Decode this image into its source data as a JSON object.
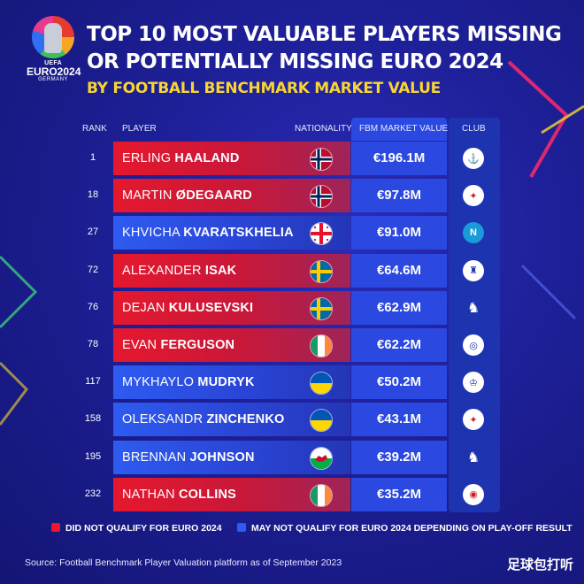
{
  "logo": {
    "line1": "UEFA",
    "line2": "EURO2024",
    "line3": "GERMANY"
  },
  "title": "Top 10 most valuable players missing or potentially missing Euro 2024",
  "subtitle": "BY FOOTBALL BENCHMARK MARKET VALUE",
  "headers": {
    "rank": "RANK",
    "player": "PLAYER",
    "nationality": "NATIONALITY",
    "value": "FBM MARKET VALUE",
    "club": "CLUB"
  },
  "players": [
    {
      "rank": "1",
      "first": "ERLING",
      "last": "HAALAND",
      "value": "€196.1M",
      "status": "red",
      "flag": "norway-flag-icon",
      "club": "manchester-city-crest-icon"
    },
    {
      "rank": "18",
      "first": "MARTIN",
      "last": "ØDEGAARD",
      "value": "€97.8M",
      "status": "red",
      "flag": "norway-flag-icon",
      "club": "arsenal-crest-icon"
    },
    {
      "rank": "27",
      "first": "KHVICHA",
      "last": "KVARATSKHELIA",
      "value": "€91.0M",
      "status": "blue",
      "flag": "georgia-flag-icon",
      "club": "napoli-crest-icon"
    },
    {
      "rank": "72",
      "first": "ALEXANDER",
      "last": "ISAK",
      "value": "€64.6M",
      "status": "red",
      "flag": "sweden-flag-icon",
      "club": "newcastle-crest-icon"
    },
    {
      "rank": "76",
      "first": "DEJAN",
      "last": "KULUSEVSKI",
      "value": "€62.9M",
      "status": "red",
      "flag": "sweden-flag-icon",
      "club": "tottenham-crest-icon"
    },
    {
      "rank": "78",
      "first": "EVAN",
      "last": "FERGUSON",
      "value": "€62.2M",
      "status": "red",
      "flag": "ireland-flag-icon",
      "club": "brighton-crest-icon"
    },
    {
      "rank": "117",
      "first": "MYKHAYLO",
      "last": "MUDRYK",
      "value": "€50.2M",
      "status": "blue",
      "flag": "ukraine-flag-icon",
      "club": "chelsea-crest-icon"
    },
    {
      "rank": "158",
      "first": "OLEKSANDR",
      "last": "ZINCHENKO",
      "value": "€43.1M",
      "status": "blue",
      "flag": "ukraine-flag-icon",
      "club": "arsenal-crest-icon"
    },
    {
      "rank": "195",
      "first": "BRENNAN",
      "last": "JOHNSON",
      "value": "€39.2M",
      "status": "blue",
      "flag": "wales-flag-icon",
      "club": "tottenham-crest-icon"
    },
    {
      "rank": "232",
      "first": "NATHAN",
      "last": "COLLINS",
      "value": "€35.2M",
      "status": "red",
      "flag": "ireland-flag-icon",
      "club": "brentford-crest-icon"
    }
  ],
  "legend": {
    "red": "DID NOT QUALIFY FOR EURO 2024",
    "blue": "MAY NOT QUALIFY FOR EURO 2024 DEPENDING ON PLAY-OFF RESULT"
  },
  "source": "Source: Football Benchmark Player Valuation platform as of September 2023",
  "watermark": "足球包打听",
  "colors": {
    "red": "#e5182d",
    "blue": "#2e5bf0",
    "accent": "#f8d531",
    "background": "#1d1f96"
  }
}
